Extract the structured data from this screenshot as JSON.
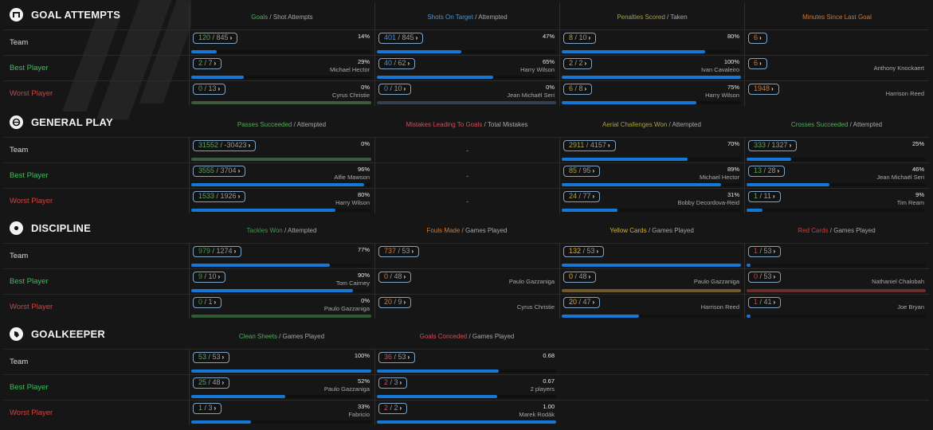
{
  "accent": {
    "bar": "#1577d6",
    "pill_border": "#7ea4c6",
    "best": "#3fbf5a",
    "worst": "#d0433f"
  },
  "row_labels": {
    "team": "Team",
    "best": "Best Player",
    "worst": "Worst Player"
  },
  "sections": [
    {
      "title": "GOAL ATTEMPTS",
      "icon": "goal-icon",
      "columns": [
        {
          "head_hi": "Goals",
          "head_rest": " / Shot Attempts",
          "hi_color": "#58a85e",
          "rows": [
            {
              "num": "120",
              "den": " / 845",
              "pct": "14%",
              "player": "",
              "fill": 0.14,
              "track_color": ""
            },
            {
              "num": "2",
              "den": " / 7",
              "pct": "29%",
              "player": "Michael Hector",
              "fill": 0.29,
              "track_color": ""
            },
            {
              "num": "0",
              "den": " / 13",
              "pct": "0%",
              "player": "Cyrus Christie",
              "fill": 0,
              "track_color": "#3c5a3e"
            }
          ]
        },
        {
          "head_hi": "Shots On Target",
          "head_rest": " / Attempted",
          "hi_color": "#4a92cc",
          "rows": [
            {
              "num": "401",
              "den": " / 845",
              "pct": "47%",
              "player": "",
              "fill": 0.47,
              "track_color": ""
            },
            {
              "num": "40",
              "den": " / 62",
              "pct": "65%",
              "player": "Harry Wilson",
              "fill": 0.65,
              "track_color": ""
            },
            {
              "num": "0",
              "den": " / 10",
              "pct": "0%",
              "player": "Jean Michaël Seri",
              "fill": 0,
              "track_color": "#33414f"
            }
          ]
        },
        {
          "head_hi": "Penalties Scored",
          "head_rest": " / Taken",
          "hi_color": "#a8a040",
          "rows": [
            {
              "num": "8",
              "den": " / 10",
              "pct": "80%",
              "player": "",
              "fill": 0.8,
              "track_color": ""
            },
            {
              "num": "2",
              "den": " / 2",
              "pct": "100%",
              "player": "Ivan Cavaleiro",
              "fill": 1.0,
              "track_color": ""
            },
            {
              "num": "6",
              "den": " / 8",
              "pct": "75%",
              "player": "Harry Wilson",
              "fill": 0.75,
              "track_color": ""
            }
          ]
        },
        {
          "head_hi": "Minutes Since Last Goal",
          "head_rest": "",
          "hi_color": "#c77a3a",
          "rows": [
            {
              "num": "6",
              "den": "",
              "pct": "",
              "player": "",
              "fill": null,
              "track_color": ""
            },
            {
              "num": "6",
              "den": "",
              "pct": "",
              "player": "Anthony Knockaert",
              "fill": null,
              "track_color": ""
            },
            {
              "num": "1948",
              "den": "",
              "pct": "",
              "player": "Harrison Reed",
              "fill": null,
              "track_color": ""
            }
          ]
        }
      ]
    },
    {
      "title": "GENERAL PLAY",
      "icon": "general-play-icon",
      "columns": [
        {
          "head_hi": "Passes Succeeded",
          "head_rest": " / Attempted",
          "hi_color": "#58a85e",
          "rows": [
            {
              "num": "31552",
              "den": " / -30423",
              "pct": "0%",
              "player": "",
              "fill": 0,
              "track_color": "#3c5a3e"
            },
            {
              "num": "3555",
              "den": " / 3704",
              "pct": "96%",
              "player": "Alfie Mawson",
              "fill": 0.96,
              "track_color": ""
            },
            {
              "num": "1533",
              "den": " / 1926",
              "pct": "80%",
              "player": "Harry Wilson",
              "fill": 0.8,
              "track_color": ""
            }
          ]
        },
        {
          "head_hi": "Mistakes Leading To Goals",
          "head_rest": " / Total Mistakes",
          "hi_color": "#c9505a",
          "rows": [
            {
              "dash": "-"
            },
            {
              "dash": "-"
            },
            {
              "dash": "-"
            }
          ]
        },
        {
          "head_hi": "Aerial Challenges Won",
          "head_rest": " / Attempted",
          "hi_color": "#a8a040",
          "rows": [
            {
              "num": "2911",
              "den": " / 4157",
              "pct": "70%",
              "player": "",
              "fill": 0.7,
              "track_color": ""
            },
            {
              "num": "85",
              "den": " / 95",
              "pct": "89%",
              "player": "Michael Hector",
              "fill": 0.89,
              "track_color": ""
            },
            {
              "num": "24",
              "den": " / 77",
              "pct": "31%",
              "player": "Bobby Decordova-Reid",
              "fill": 0.31,
              "track_color": ""
            }
          ]
        },
        {
          "head_hi": "Crosses Succeeded",
          "head_rest": " / Attempted",
          "hi_color": "#58a85e",
          "rows": [
            {
              "num": "333",
              "den": " / 1327",
              "pct": "25%",
              "player": "",
              "fill": 0.25,
              "track_color": ""
            },
            {
              "num": "13",
              "den": " / 28",
              "pct": "46%",
              "player": "Jean Michaël Seri",
              "fill": 0.46,
              "track_color": ""
            },
            {
              "num": "1",
              "den": " / 11",
              "pct": "9%",
              "player": "Tim Ream",
              "fill": 0.09,
              "track_color": ""
            }
          ]
        }
      ]
    },
    {
      "title": "DISCIPLINE",
      "icon": "discipline-icon",
      "columns": [
        {
          "head_hi": "Tackles Won",
          "head_rest": " / Attempted",
          "hi_color": "#3f9a4a",
          "rows": [
            {
              "num": "979",
              "den": " / 1274",
              "pct": "77%",
              "player": "",
              "fill": 0.77,
              "track_color": ""
            },
            {
              "num": "9",
              "den": " / 10",
              "pct": "90%",
              "player": "Tom Cairney",
              "fill": 0.9,
              "track_color": ""
            },
            {
              "num": "0",
              "den": " / 1",
              "pct": "0%",
              "player": "Paulo Gazzaniga",
              "fill": 0,
              "track_color": "#2f5a34"
            }
          ]
        },
        {
          "head_hi": "Fouls Made",
          "head_rest": " / Games Played",
          "hi_color": "#d9782a",
          "rows": [
            {
              "num": "737",
              "den": " / 53",
              "pct": "",
              "player": "",
              "fill": null,
              "track_color": ""
            },
            {
              "num": "0",
              "den": " / 48",
              "pct": "",
              "player": "Paulo Gazzaniga",
              "fill": null,
              "track_color": ""
            },
            {
              "num": "20",
              "den": " / 9",
              "pct": "",
              "player": "Cyrus Christie",
              "fill": null,
              "track_color": ""
            }
          ]
        },
        {
          "head_hi": "Yellow Cards",
          "head_rest": " / Games Played",
          "hi_color": "#e0b020",
          "rows": [
            {
              "num": "132",
              "den": " / 53",
              "pct": "",
              "player": "",
              "fill": 1.0,
              "track_color": ""
            },
            {
              "num": "0",
              "den": " / 48",
              "pct": "",
              "player": "Paulo Gazzaniga",
              "fill": 0,
              "track_color": "#6e5a2a"
            },
            {
              "num": "20",
              "den": " / 47",
              "pct": "",
              "player": "Harrison Reed",
              "fill": 0.43,
              "track_color": ""
            }
          ]
        },
        {
          "head_hi": "Red Cards",
          "head_rest": " / Games Played",
          "hi_color": "#c9403a",
          "rows": [
            {
              "num": "1",
              "den": " / 53",
              "pct": "",
              "player": "",
              "fill": 0.02,
              "track_color": ""
            },
            {
              "num": "0",
              "den": " / 53",
              "pct": "",
              "player": "Nathaniel Chalobah",
              "fill": 0,
              "track_color": "#6a2e2e"
            },
            {
              "num": "1",
              "den": " / 41",
              "pct": "",
              "player": "Joe Bryan",
              "fill": 0.02,
              "track_color": ""
            }
          ]
        }
      ]
    },
    {
      "title": "GOALKEEPER",
      "icon": "goalkeeper-glove-icon",
      "columns": [
        {
          "head_hi": "Clean Sheets",
          "head_rest": " / Games Played",
          "hi_color": "#58a85e",
          "rows": [
            {
              "num": "53",
              "den": " / 53",
              "pct": "100%",
              "player": "",
              "fill": 1.0,
              "track_color": ""
            },
            {
              "num": "25",
              "den": " / 48",
              "pct": "52%",
              "player": "Paulo Gazzaniga",
              "fill": 0.52,
              "track_color": ""
            },
            {
              "num": "1",
              "den": " / 3",
              "pct": "33%",
              "player": "Fabricio",
              "fill": 0.33,
              "track_color": ""
            }
          ]
        },
        {
          "head_hi": "Goals Conceded",
          "head_rest": " / Games Played",
          "hi_color": "#c9505a",
          "rows": [
            {
              "num": "36",
              "den": " / 53",
              "pct": "0.68",
              "player": "",
              "fill": 0.68,
              "track_color": ""
            },
            {
              "num": "2",
              "den": " / 3",
              "pct": "0.67",
              "player": "2 players",
              "fill": 0.67,
              "track_color": ""
            },
            {
              "num": "2",
              "den": " / 2",
              "pct": "1.00",
              "player": "Marek Rodák",
              "fill": 1.0,
              "track_color": ""
            }
          ]
        }
      ]
    }
  ]
}
